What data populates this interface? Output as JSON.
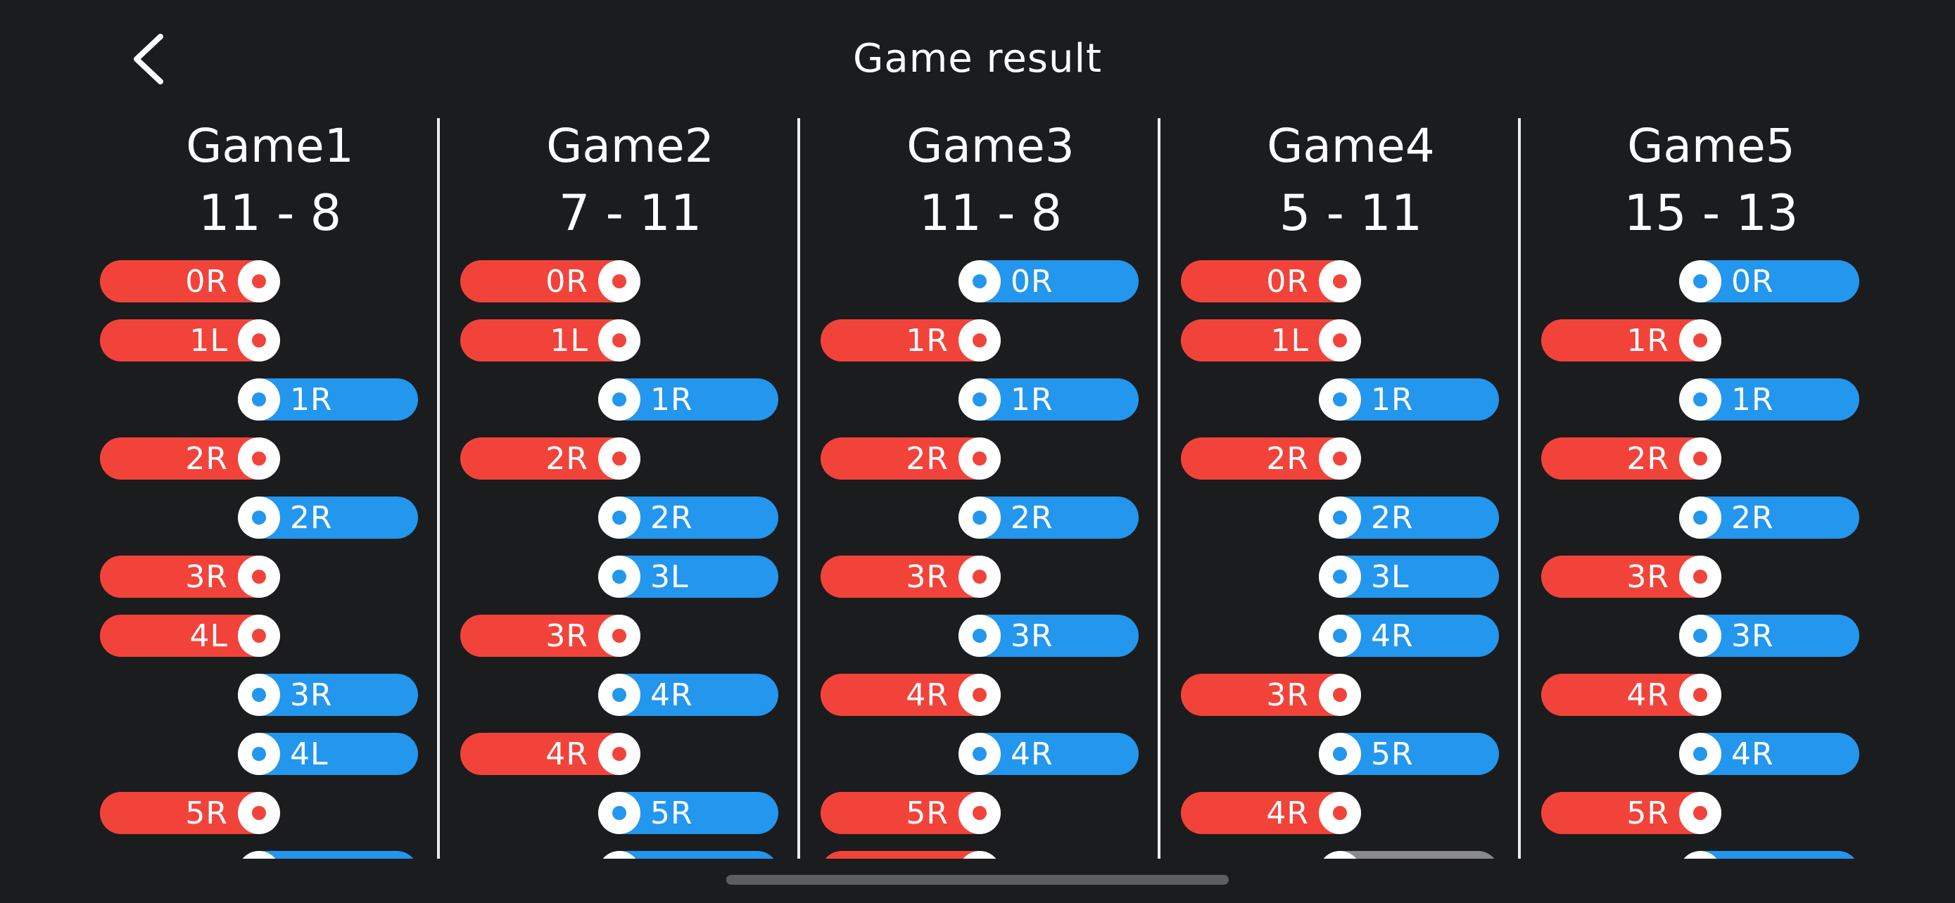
{
  "header": {
    "title": "Game result",
    "back_icon": "chevron-left-icon"
  },
  "colors": {
    "background": "#1b1c1e",
    "red": "#f2433b",
    "blue": "#2396ee",
    "gray": "#8a8a8a",
    "divider": "#ececec"
  },
  "games": [
    {
      "name": "Game1",
      "score": "11 - 8",
      "points": [
        {
          "side": "red",
          "label": "0R"
        },
        {
          "side": "red",
          "label": "1L"
        },
        {
          "side": "blue",
          "label": "1R"
        },
        {
          "side": "red",
          "label": "2R"
        },
        {
          "side": "blue",
          "label": "2R"
        },
        {
          "side": "red",
          "label": "3R"
        },
        {
          "side": "red",
          "label": "4L"
        },
        {
          "side": "blue",
          "label": "3R"
        },
        {
          "side": "blue",
          "label": "4L"
        },
        {
          "side": "red",
          "label": "5R"
        },
        {
          "side": "blue",
          "label": ""
        }
      ]
    },
    {
      "name": "Game2",
      "score": "7 - 11",
      "points": [
        {
          "side": "red",
          "label": "0R"
        },
        {
          "side": "red",
          "label": "1L"
        },
        {
          "side": "blue",
          "label": "1R"
        },
        {
          "side": "red",
          "label": "2R"
        },
        {
          "side": "blue",
          "label": "2R"
        },
        {
          "side": "blue",
          "label": "3L"
        },
        {
          "side": "red",
          "label": "3R"
        },
        {
          "side": "blue",
          "label": "4R"
        },
        {
          "side": "red",
          "label": "4R"
        },
        {
          "side": "blue",
          "label": "5R"
        },
        {
          "side": "blue",
          "label": ""
        }
      ]
    },
    {
      "name": "Game3",
      "score": "11 - 8",
      "points": [
        {
          "side": "blue",
          "label": "0R"
        },
        {
          "side": "red",
          "label": "1R"
        },
        {
          "side": "blue",
          "label": "1R"
        },
        {
          "side": "red",
          "label": "2R"
        },
        {
          "side": "blue",
          "label": "2R"
        },
        {
          "side": "red",
          "label": "3R"
        },
        {
          "side": "blue",
          "label": "3R"
        },
        {
          "side": "red",
          "label": "4R"
        },
        {
          "side": "blue",
          "label": "4R"
        },
        {
          "side": "red",
          "label": "5R"
        },
        {
          "side": "red",
          "label": ""
        }
      ]
    },
    {
      "name": "Game4",
      "score": "5 - 11",
      "points": [
        {
          "side": "red",
          "label": "0R"
        },
        {
          "side": "red",
          "label": "1L"
        },
        {
          "side": "blue",
          "label": "1R"
        },
        {
          "side": "red",
          "label": "2R"
        },
        {
          "side": "blue",
          "label": "2R"
        },
        {
          "side": "blue",
          "label": "3L"
        },
        {
          "side": "blue",
          "label": "4R"
        },
        {
          "side": "red",
          "label": "3R"
        },
        {
          "side": "blue",
          "label": "5R"
        },
        {
          "side": "red",
          "label": "4R"
        },
        {
          "side": "gray",
          "label": ""
        }
      ]
    },
    {
      "name": "Game5",
      "score": "15 - 13",
      "points": [
        {
          "side": "blue",
          "label": "0R"
        },
        {
          "side": "red",
          "label": "1R"
        },
        {
          "side": "blue",
          "label": "1R"
        },
        {
          "side": "red",
          "label": "2R"
        },
        {
          "side": "blue",
          "label": "2R"
        },
        {
          "side": "red",
          "label": "3R"
        },
        {
          "side": "blue",
          "label": "3R"
        },
        {
          "side": "red",
          "label": "4R"
        },
        {
          "side": "blue",
          "label": "4R"
        },
        {
          "side": "red",
          "label": "5R"
        },
        {
          "side": "blue",
          "label": ""
        }
      ]
    }
  ]
}
